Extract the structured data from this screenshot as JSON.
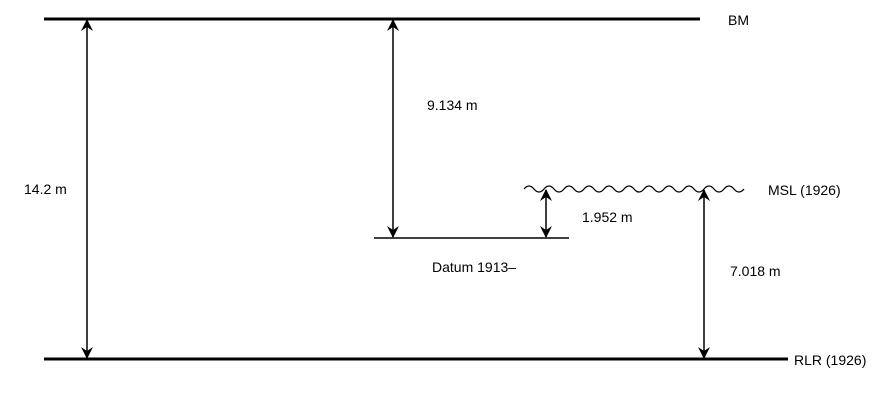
{
  "levels": {
    "bm": "BM",
    "msl": "MSL (1926)",
    "rlr": "RLR (1926)",
    "datum": "Datum 1913–"
  },
  "measurements": {
    "bm_to_rlr": "14.2 m",
    "bm_to_datum": "9.134 m",
    "msl_to_datum": "1.952 m",
    "msl_to_rlr": "7.018 m"
  },
  "colors": {
    "line": "#000000",
    "background": "#ffffff"
  }
}
